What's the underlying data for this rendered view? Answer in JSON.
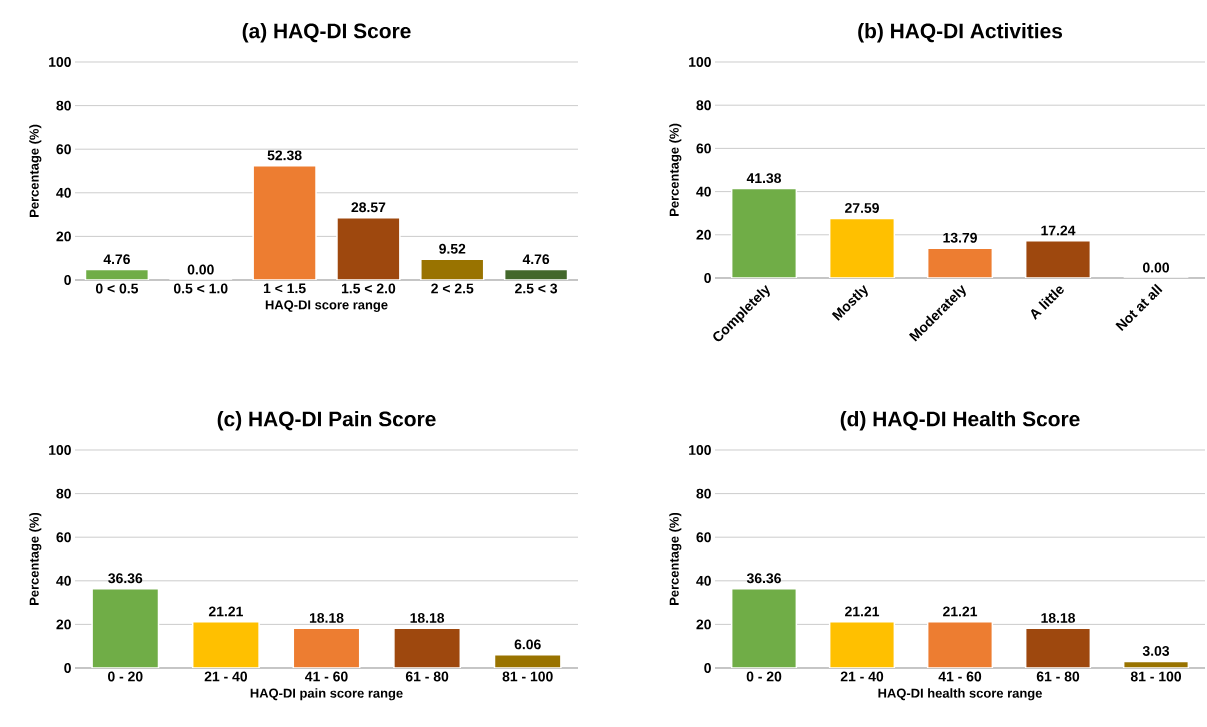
{
  "chart_data": [
    {
      "type": "bar",
      "title": "(a) HAQ-DI Score",
      "xlabel": "HAQ-DI score range",
      "ylabel": "Percentage (%)",
      "categories": [
        "0 < 0.5",
        "0.5 < 1.0",
        "1 < 1.5",
        "1.5 < 2.0",
        "2 < 2.5",
        "2.5 < 3"
      ],
      "values": [
        4.76,
        0.0,
        52.38,
        28.57,
        9.52,
        4.76
      ],
      "value_labels": [
        "4.76",
        "0.00",
        "52.38",
        "28.57",
        "9.52",
        "4.76"
      ],
      "colors": [
        "#70ad47",
        "#ffc000",
        "#ed7d31",
        "#9e480e",
        "#997300",
        "#43682b"
      ],
      "ylim": [
        0,
        100
      ],
      "yticks": [
        0,
        20,
        40,
        60,
        80,
        100
      ],
      "grid": "y"
    },
    {
      "type": "bar",
      "title": "(b) HAQ-DI Activities",
      "ylabel": "Percentage (%)",
      "categories": [
        "Completely",
        "Mostly",
        "Moderately",
        "A little",
        "Not at all"
      ],
      "values": [
        41.38,
        27.59,
        13.79,
        17.24,
        0.0
      ],
      "value_labels": [
        "41.38",
        "27.59",
        "13.79",
        "17.24",
        "0.00"
      ],
      "colors": [
        "#70ad47",
        "#ffc000",
        "#ed7d31",
        "#9e480e",
        "#997300"
      ],
      "ylim": [
        0,
        100
      ],
      "yticks": [
        0,
        20,
        40,
        60,
        80,
        100
      ],
      "grid": "y"
    },
    {
      "type": "bar",
      "title": "(c) HAQ-DI Pain Score",
      "xlabel": "HAQ-DI pain score range",
      "ylabel": "Percentage (%)",
      "categories": [
        "0 - 20",
        "21 - 40",
        "41 - 60",
        "61 - 80",
        "81 - 100"
      ],
      "values": [
        36.36,
        21.21,
        18.18,
        18.18,
        6.06
      ],
      "value_labels": [
        "36.36",
        "21.21",
        "18.18",
        "18.18",
        "6.06"
      ],
      "colors": [
        "#70ad47",
        "#ffc000",
        "#ed7d31",
        "#9e480e",
        "#997300"
      ],
      "ylim": [
        0,
        100
      ],
      "yticks": [
        0,
        20,
        40,
        60,
        80,
        100
      ],
      "grid": "y"
    },
    {
      "type": "bar",
      "title": "(d) HAQ-DI Health Score",
      "xlabel": "HAQ-DI health score range",
      "ylabel": "Percentage (%)",
      "categories": [
        "0 - 20",
        "21 - 40",
        "41 - 60",
        "61 - 80",
        "81 - 100"
      ],
      "values": [
        36.36,
        21.21,
        21.21,
        18.18,
        3.03
      ],
      "value_labels": [
        "36.36",
        "21.21",
        "21.21",
        "18.18",
        "3.03"
      ],
      "colors": [
        "#70ad47",
        "#ffc000",
        "#ed7d31",
        "#9e480e",
        "#997300"
      ],
      "ylim": [
        0,
        100
      ],
      "yticks": [
        0,
        20,
        40,
        60,
        80,
        100
      ],
      "grid": "y"
    }
  ]
}
